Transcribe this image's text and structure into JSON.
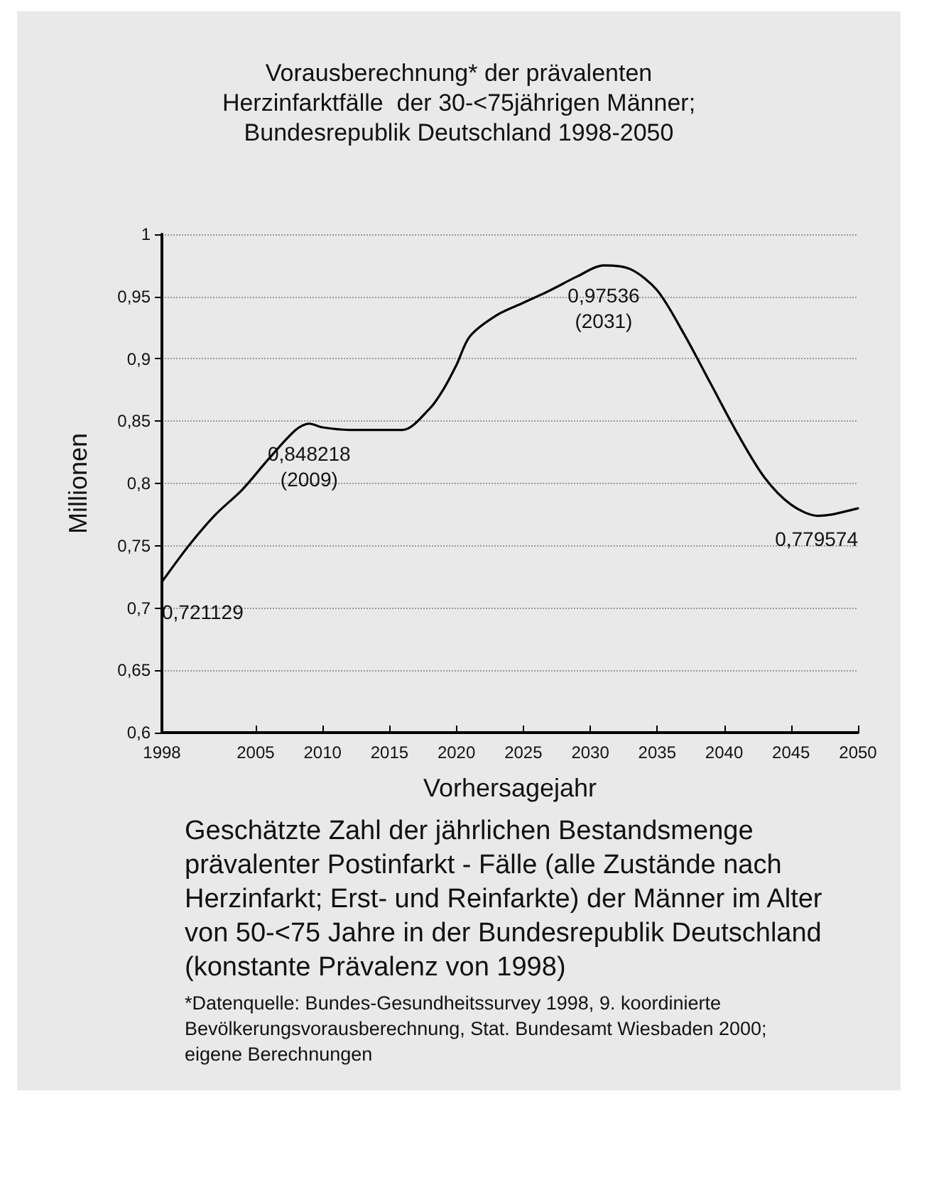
{
  "chart_data": {
    "type": "line",
    "title": "Vorausberechnung* der prävalenten\nHerzinfarktfälle  der 30-<75jährigen Männer;\nBundesrepublik Deutschland 1998-2050",
    "xlabel": "Vorhersagejahr",
    "ylabel": "Millionen",
    "x": [
      1998,
      2000,
      2002,
      2004,
      2006,
      2008,
      2009,
      2010,
      2012,
      2014,
      2016,
      2018,
      2019,
      2020,
      2021,
      2023,
      2025,
      2027,
      2029,
      2031,
      2033,
      2035,
      2037,
      2039,
      2041,
      2043,
      2045,
      2047,
      2048,
      2050
    ],
    "series": [
      {
        "color": "#000000",
        "values": [
          0.721,
          0.75,
          0.775,
          0.795,
          0.82,
          0.843,
          0.848,
          0.845,
          0.843,
          0.843,
          0.843,
          0.86,
          0.875,
          0.895,
          0.918,
          0.935,
          0.945,
          0.955,
          0.966,
          0.975,
          0.972,
          0.955,
          0.92,
          0.88,
          0.84,
          0.805,
          0.783,
          0.774,
          0.775,
          0.78
        ]
      }
    ],
    "xlim": [
      1998,
      2050
    ],
    "xticks": [
      1998,
      2005,
      2010,
      2015,
      2020,
      2025,
      2030,
      2035,
      2040,
      2045,
      2050
    ],
    "ylim": [
      0.6,
      1
    ],
    "yticks": [
      {
        "value": 0.6,
        "label": "0,6"
      },
      {
        "value": 0.65,
        "label": "0,65"
      },
      {
        "value": 0.7,
        "label": "0,7"
      },
      {
        "value": 0.75,
        "label": "0,75"
      },
      {
        "value": 0.8,
        "label": "0,8"
      },
      {
        "value": 0.85,
        "label": "0,85"
      },
      {
        "value": 0.9,
        "label": "0,9"
      },
      {
        "value": 0.95,
        "label": "0,95"
      },
      1
    ],
    "grid": "y",
    "marker": "none",
    "line_style": "solid",
    "annotations": [
      {
        "text": "0,721129",
        "x": 1998,
        "y": 0.721
      },
      {
        "text": "0,848218\n(2009)",
        "x": 2009,
        "y": 0.848
      },
      {
        "text": "0,97536\n(2031)",
        "x": 2031,
        "y": 0.975
      },
      {
        "text": "0,779574",
        "x": 2050,
        "y": 0.7796
      },
      "Geschätzte Zahl der jährlichen Bestandsmenge prävalenter Postinfarkt - Fälle (alle Zustände nach Herzinfarkt; Erst- und Reinfarkte) der Männer im Alter von 50-<75 Jahre in der Bundesrepublik Deutschland (konstante Prävalenz von 1998)",
      "*Datenquelle: Bundes-Gesundheitssurvey 1998, 9. koordinierte Bevölkerungsvorausberechnung, Stat. Bundesamt Wiesbaden 2000; eigene Berechnungen"
    ]
  }
}
